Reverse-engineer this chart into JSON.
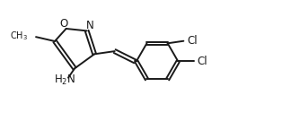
{
  "figwidth": 3.24,
  "figheight": 1.45,
  "dpi": 100,
  "bg": "#ffffff",
  "lc": "#1a1a1a",
  "lw": 1.4,
  "fs": 8.5,
  "xlim": [
    0,
    10
  ],
  "ylim": [
    0,
    4.5
  ]
}
